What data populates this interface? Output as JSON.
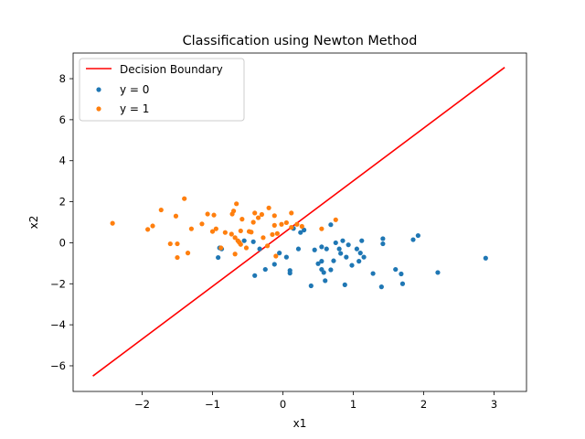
{
  "chart_data": {
    "type": "scatter",
    "title": "Classification using Newton Method",
    "xlabel": "x1",
    "ylabel": "x2",
    "xlim": [
      -2.98,
      3.46
    ],
    "ylim": [
      -7.25,
      9.25
    ],
    "xticks": [
      -2,
      -1,
      0,
      1,
      2,
      3
    ],
    "yticks": [
      -6,
      -4,
      -2,
      0,
      2,
      4,
      6,
      8
    ],
    "grid": false,
    "legend_position": "top-left",
    "line": {
      "name": "Decision Boundary",
      "color": "#ff0000",
      "x": [
        -2.7,
        3.15
      ],
      "y": [
        -6.5,
        8.55
      ]
    },
    "series": [
      {
        "name": "y = 0",
        "color": "#1f77b4",
        "points": [
          [
            -0.92,
            -0.72
          ],
          [
            -0.9,
            -0.25
          ],
          [
            -0.87,
            -0.3
          ],
          [
            -0.55,
            0.1
          ],
          [
            -0.42,
            0.05
          ],
          [
            -0.4,
            -1.6
          ],
          [
            -0.33,
            -0.3
          ],
          [
            -0.25,
            -1.3
          ],
          [
            -0.12,
            -1.05
          ],
          [
            -0.05,
            -0.5
          ],
          [
            0.05,
            -0.7
          ],
          [
            0.1,
            -1.35
          ],
          [
            0.1,
            -1.48
          ],
          [
            0.15,
            0.7
          ],
          [
            0.22,
            -0.3
          ],
          [
            0.25,
            0.5
          ],
          [
            0.3,
            0.62
          ],
          [
            0.4,
            -2.1
          ],
          [
            0.45,
            -0.35
          ],
          [
            0.5,
            -1.02
          ],
          [
            0.55,
            -0.2
          ],
          [
            0.55,
            -0.9
          ],
          [
            0.55,
            -1.3
          ],
          [
            0.58,
            -1.45
          ],
          [
            0.6,
            -1.85
          ],
          [
            0.62,
            -0.3
          ],
          [
            0.68,
            0.88
          ],
          [
            0.68,
            -1.32
          ],
          [
            0.72,
            -0.88
          ],
          [
            0.75,
            0.0
          ],
          [
            0.8,
            -0.3
          ],
          [
            0.82,
            -0.52
          ],
          [
            0.85,
            0.1
          ],
          [
            0.88,
            -2.05
          ],
          [
            0.9,
            -0.7
          ],
          [
            0.93,
            -0.1
          ],
          [
            0.98,
            -1.1
          ],
          [
            1.05,
            -0.3
          ],
          [
            1.08,
            -0.9
          ],
          [
            1.1,
            -0.5
          ],
          [
            1.12,
            0.1
          ],
          [
            1.15,
            -0.7
          ],
          [
            1.28,
            -1.5
          ],
          [
            1.4,
            -2.15
          ],
          [
            1.42,
            0.2
          ],
          [
            1.42,
            -0.05
          ],
          [
            1.6,
            -1.3
          ],
          [
            1.68,
            -1.52
          ],
          [
            1.7,
            -2.0
          ],
          [
            1.85,
            0.15
          ],
          [
            1.92,
            0.35
          ],
          [
            2.2,
            -1.45
          ],
          [
            2.88,
            -0.75
          ]
        ]
      },
      {
        "name": "y = 1",
        "color": "#ff7f0e",
        "points": [
          [
            -2.42,
            0.95
          ],
          [
            -1.92,
            0.65
          ],
          [
            -1.85,
            0.82
          ],
          [
            -1.73,
            1.6
          ],
          [
            -1.6,
            -0.05
          ],
          [
            -1.52,
            1.3
          ],
          [
            -1.5,
            -0.72
          ],
          [
            -1.5,
            -0.05
          ],
          [
            -1.4,
            2.15
          ],
          [
            -1.35,
            -0.5
          ],
          [
            -1.3,
            0.68
          ],
          [
            -1.15,
            0.92
          ],
          [
            -1.07,
            1.4
          ],
          [
            -1.0,
            0.55
          ],
          [
            -0.98,
            1.35
          ],
          [
            -0.95,
            0.68
          ],
          [
            -0.88,
            -0.25
          ],
          [
            -0.82,
            0.5
          ],
          [
            -0.73,
            0.42
          ],
          [
            -0.72,
            1.4
          ],
          [
            -0.7,
            1.55
          ],
          [
            -0.68,
            0.25
          ],
          [
            -0.68,
            -0.55
          ],
          [
            -0.66,
            1.9
          ],
          [
            -0.64,
            0.1
          ],
          [
            -0.62,
            0.02
          ],
          [
            -0.6,
            -0.08
          ],
          [
            -0.6,
            0.58
          ],
          [
            -0.58,
            1.15
          ],
          [
            -0.52,
            -0.25
          ],
          [
            -0.48,
            0.55
          ],
          [
            -0.45,
            0.52
          ],
          [
            -0.42,
            1.0
          ],
          [
            -0.4,
            1.45
          ],
          [
            -0.35,
            1.22
          ],
          [
            -0.3,
            1.38
          ],
          [
            -0.28,
            0.25
          ],
          [
            -0.22,
            -0.15
          ],
          [
            -0.2,
            1.7
          ],
          [
            -0.15,
            0.4
          ],
          [
            -0.12,
            1.32
          ],
          [
            -0.12,
            0.85
          ],
          [
            -0.1,
            -0.65
          ],
          [
            -0.08,
            0.45
          ],
          [
            -0.02,
            0.9
          ],
          [
            0.05,
            0.98
          ],
          [
            0.12,
            0.75
          ],
          [
            0.12,
            1.45
          ],
          [
            0.2,
            0.9
          ],
          [
            0.27,
            0.8
          ],
          [
            0.55,
            0.68
          ],
          [
            0.75,
            1.12
          ]
        ]
      }
    ]
  }
}
